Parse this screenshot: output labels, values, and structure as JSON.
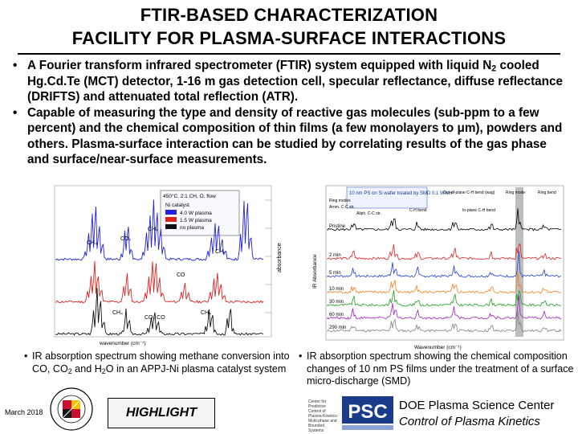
{
  "slide": {
    "title_line1": "FTIR-BASED CHARACTERIZATION",
    "title_line2": "FACILITY FOR PLASMA-SURFACE INTERACTIONS",
    "bullet_glyph": "•",
    "bullets": [
      {
        "pre": "A Fourier transform infrared spectrometer (FTIR) system equipped with liquid N",
        "sub": "2",
        "post": " cooled Hg.Cd.Te (MCT) detector, 1-16 m gas detection cell, specular reflectance, diffuse reflectance (DRIFTS) and attenuated total reflection (ATR)."
      },
      {
        "text": "Capable of measuring the type and density of reactive gas molecules (sub-ppm to a few percent) and the chemical composition of thin films (a few monolayers to μm), powders and others. Plasma-surface interaction can be studied by correlating results of the gas phase and surface/near-surface measurements."
      }
    ]
  },
  "left_figure": {
    "legend_title": "450°C, 2:1 CH, O, flow",
    "legend_items": [
      "Ni catalyst",
      "4.0 W plasma",
      "1.5 W plasma",
      "no plasma"
    ],
    "legend_colors": [
      "#ffffff",
      "#2222dd",
      "#dd2222",
      "#111111"
    ],
    "peak_labels": [
      "CH₄",
      "CO₂",
      "CH₄",
      "CH₂",
      "CO",
      "CO₂ CO",
      "CH₄",
      "CH₄"
    ],
    "xlabel": "wavenumber (cm⁻¹)",
    "ylabel": "absorbance"
  },
  "right_figure": {
    "title": "10 nm PS on Si wafer treated by SMD 0.1 W/cm²",
    "header_labels": [
      "Ring modes",
      "Arom. C-C str.",
      "Aliph. C-C str.",
      "C-H bend",
      "Out-of-plane C-H bend (wag)",
      "In-plane C-H bend",
      "Ring mode",
      "Ring bend"
    ],
    "trace_labels": [
      "Pristine",
      "2 min",
      "5 min",
      "10 min",
      "30 min",
      "60 min",
      "290 min"
    ],
    "trace_colors": [
      "#000000",
      "#e02020",
      "#2040d0",
      "#f08020",
      "#20a020",
      "#a020c0",
      "#808080"
    ],
    "xlabel": "Wavenumber (cm⁻¹)",
    "ylabel": "IR Absorbance"
  },
  "captions": {
    "left": {
      "a": "IR absorption spectrum showing methane conversion into CO, CO",
      "b": "2",
      "c": " and H",
      "d": "2",
      "e": "O in an APPJ-Ni plasma catalyst system"
    },
    "right": "IR absorption spectrum showing the chemical composition changes of 10 nm PS films under the treatment of a surface micro-discharge (SMD)"
  },
  "footer": {
    "date": "March 2018",
    "highlight": "HIGHLIGHT",
    "seal_text": "UNIVERSITY OF MARYLAND",
    "cpcbk_text": "Center for Predictive Control of Plasma Kinetics: Multi-phase and Bounded Systems",
    "psc": "PSC",
    "doe_line1": "DOE Plasma Science Center",
    "doe_line2": "Control of Plasma Kinetics"
  },
  "colors": {
    "accent_blue": "#1a3a8a",
    "maryland_red": "#c8102e",
    "maryland_gold": "#f2c300"
  }
}
